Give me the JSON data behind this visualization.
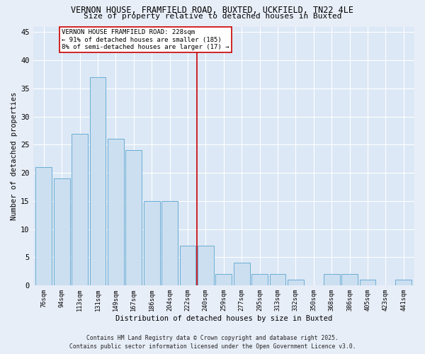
{
  "title_line1": "VERNON HOUSE, FRAMFIELD ROAD, BUXTED, UCKFIELD, TN22 4LE",
  "title_line2": "Size of property relative to detached houses in Buxted",
  "xlabel": "Distribution of detached houses by size in Buxted",
  "ylabel": "Number of detached properties",
  "categories": [
    "76sqm",
    "94sqm",
    "113sqm",
    "131sqm",
    "149sqm",
    "167sqm",
    "186sqm",
    "204sqm",
    "222sqm",
    "240sqm",
    "259sqm",
    "277sqm",
    "295sqm",
    "313sqm",
    "332sqm",
    "350sqm",
    "368sqm",
    "386sqm",
    "405sqm",
    "423sqm",
    "441sqm"
  ],
  "values": [
    21,
    19,
    27,
    37,
    26,
    24,
    15,
    15,
    7,
    7,
    2,
    4,
    2,
    2,
    1,
    0,
    2,
    2,
    1,
    0,
    1
  ],
  "bar_color": "#ccdff0",
  "bar_edge_color": "#6aadd5",
  "reference_line_x": 8.5,
  "reference_line_color": "#cc0000",
  "annotation_text": "VERNON HOUSE FRAMFIELD ROAD: 228sqm\n← 91% of detached houses are smaller (185)\n8% of semi-detached houses are larger (17) →",
  "annotation_box_color": "#cc0000",
  "ylim": [
    0,
    46
  ],
  "yticks": [
    0,
    5,
    10,
    15,
    20,
    25,
    30,
    35,
    40,
    45
  ],
  "background_color": "#dce8f5",
  "fig_background_color": "#e8eef8",
  "grid_color": "#ffffff",
  "footer_line1": "Contains HM Land Registry data © Crown copyright and database right 2025.",
  "footer_line2": "Contains public sector information licensed under the Open Government Licence v3.0."
}
